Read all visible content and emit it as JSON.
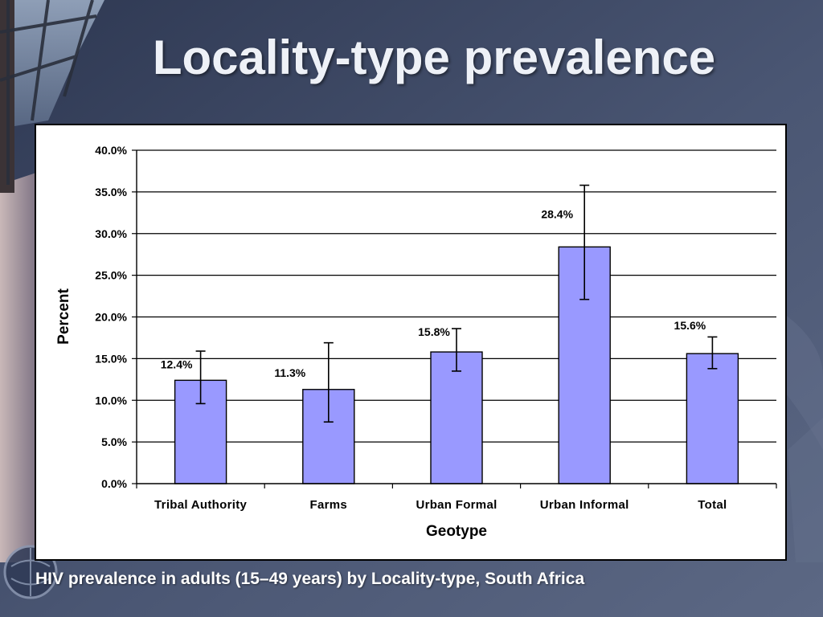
{
  "slide": {
    "title": "Locality-type prevalence",
    "caption": "HIV prevalence in adults (15–49 years) by Locality-type, South Africa"
  },
  "colors": {
    "bar_fill": "#9999ff",
    "bar_stroke": "#000000",
    "grid": "#000000",
    "background": "#48546f"
  },
  "chart_data": {
    "type": "bar",
    "xlabel": "Geotype",
    "ylabel": "Percent",
    "ylim": [
      0,
      40
    ],
    "y_ticks": [
      0,
      5,
      10,
      15,
      20,
      25,
      30,
      35,
      40
    ],
    "y_tick_labels": [
      "0.0%",
      "5.0%",
      "10.0%",
      "15.0%",
      "20.0%",
      "25.0%",
      "30.0%",
      "35.0%",
      "40.0%"
    ],
    "grid": true,
    "legend": "none",
    "categories": [
      "Tribal Authority",
      "Farms",
      "Urban Formal",
      "Urban Informal",
      "Total"
    ],
    "values": [
      12.4,
      11.3,
      15.8,
      28.4,
      15.6
    ],
    "value_labels": [
      "12.4%",
      "11.3%",
      "15.8%",
      "28.4%",
      "15.6%"
    ],
    "error_low": [
      9.6,
      7.4,
      13.5,
      22.1,
      13.8
    ],
    "error_high": [
      15.9,
      16.9,
      18.6,
      35.8,
      17.6
    ]
  }
}
